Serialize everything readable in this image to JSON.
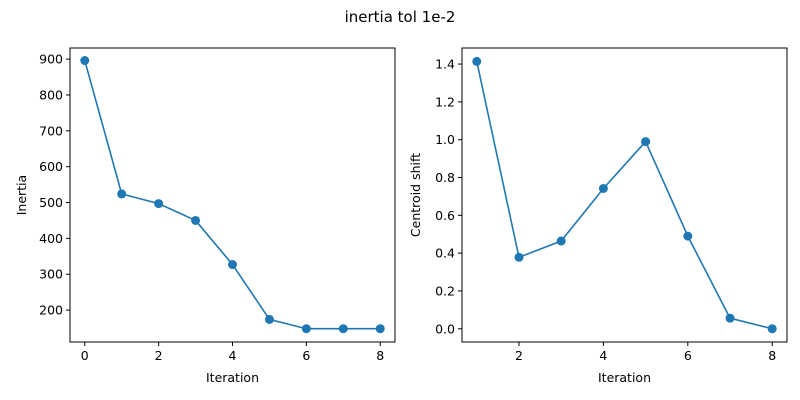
{
  "suptitle": "inertia tol 1e-2",
  "colors": {
    "series": "#1f77b4",
    "axes": "#000000",
    "background": "#ffffff"
  },
  "chart_data": [
    {
      "type": "line",
      "marker": "circle",
      "xlabel": "Iteration",
      "ylabel": "Inertia",
      "xlim": [
        -0.4,
        8.4
      ],
      "ylim": [
        111,
        931
      ],
      "xticks": [
        0,
        2,
        4,
        6,
        8
      ],
      "yticks": [
        200,
        300,
        400,
        500,
        600,
        700,
        800,
        900
      ],
      "grid": false,
      "series": [
        {
          "x": [
            0,
            1,
            2,
            3,
            4,
            5,
            6,
            7,
            8
          ],
          "y": [
            896,
            524,
            497,
            450,
            327,
            174,
            148,
            148,
            148
          ]
        }
      ]
    },
    {
      "type": "line",
      "marker": "circle",
      "xlabel": "Iteration",
      "ylabel": "Centroid shift",
      "xlim": [
        0.65,
        8.35
      ],
      "ylim": [
        -0.07,
        1.485
      ],
      "xticks": [
        2,
        4,
        6,
        8
      ],
      "yticks": [
        0.0,
        0.2,
        0.4,
        0.6,
        0.8,
        1.0,
        1.2,
        1.4
      ],
      "ytick_decimals": 1,
      "grid": false,
      "series": [
        {
          "x": [
            1,
            2,
            3,
            4,
            5,
            6,
            7,
            8
          ],
          "y": [
            1.414,
            0.378,
            0.464,
            0.742,
            0.99,
            0.49,
            0.056,
            0.0
          ]
        }
      ]
    }
  ]
}
